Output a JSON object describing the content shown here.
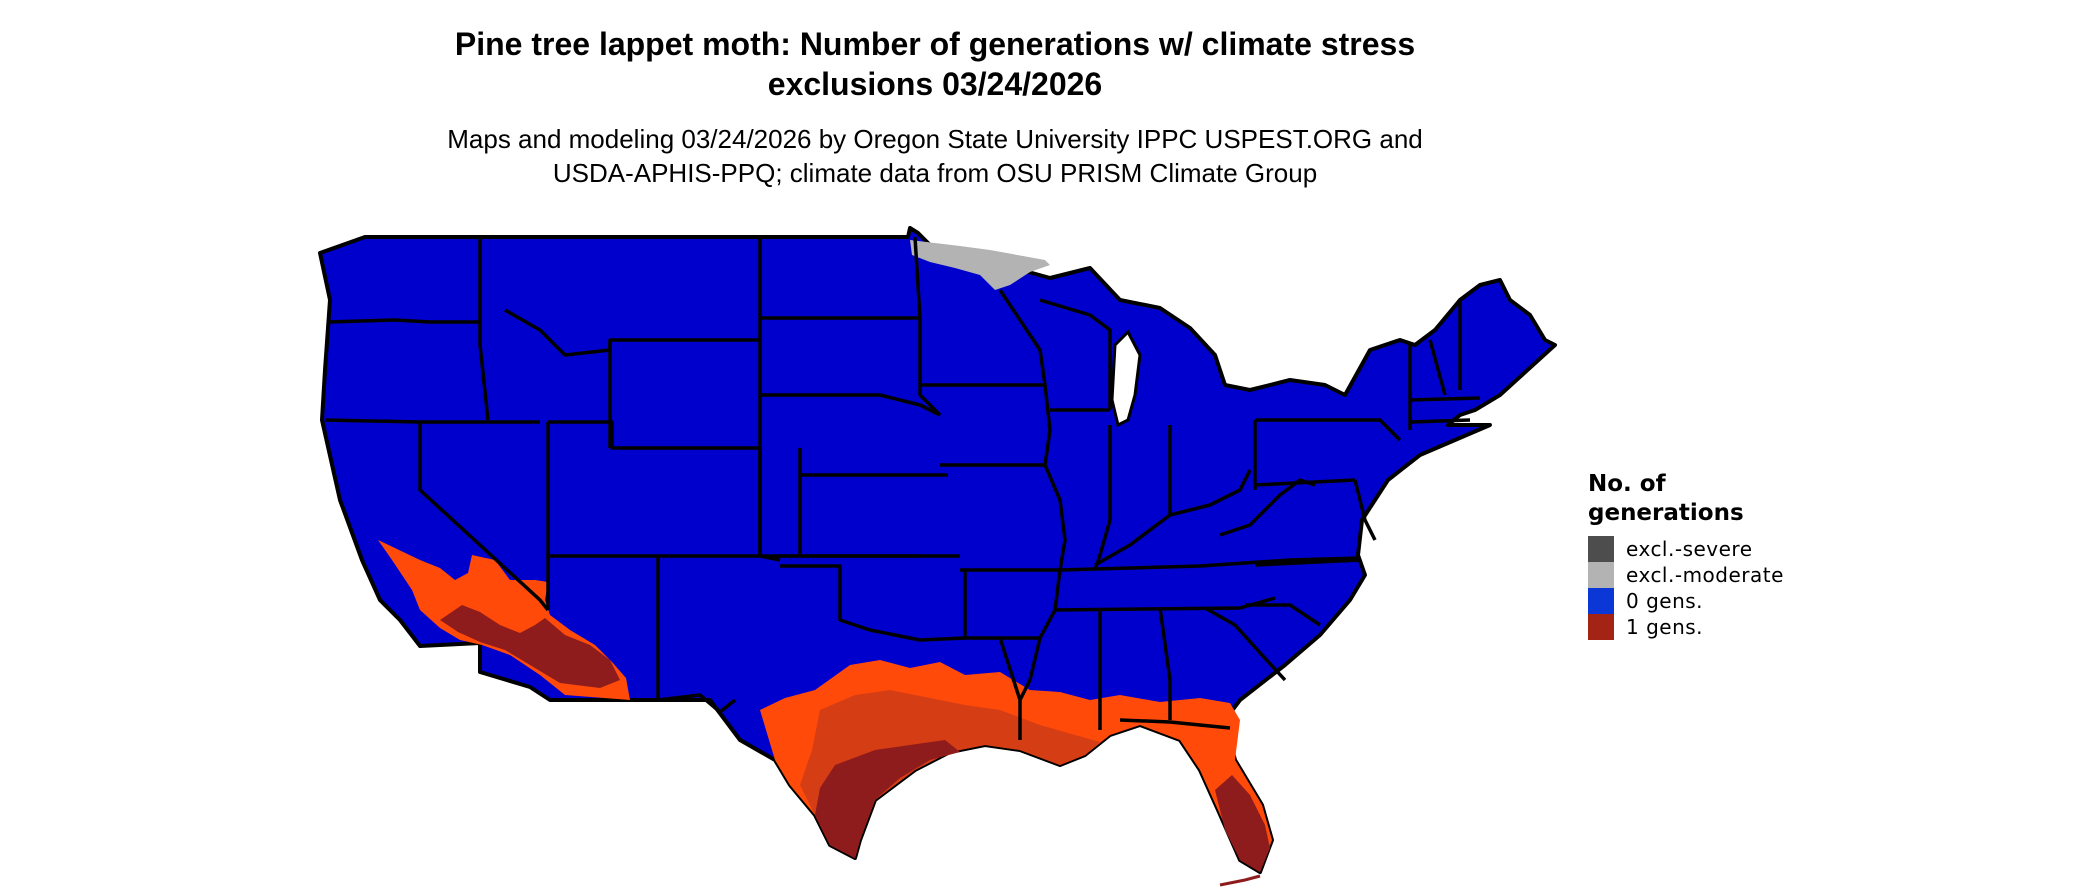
{
  "title_line1": "Pine tree lappet moth: Number of generations w/ climate stress",
  "title_line2": "exclusions 03/24/2026",
  "subtitle_line1": "Maps and modeling 03/24/2026 by Oregon State University IPPC USPEST.ORG and",
  "subtitle_line2": "USDA-APHIS-PPQ; climate data from OSU PRISM Climate Group",
  "legend": {
    "title_line1": "No. of",
    "title_line2": "generations",
    "items": [
      {
        "label": "excl.-severe",
        "color": "#4d4d4d"
      },
      {
        "label": "excl.-moderate",
        "color": "#b3b3b3"
      },
      {
        "label": "0 gens.",
        "color": "#0a37d6"
      },
      {
        "label": "1 gens.",
        "color": "#a32414"
      }
    ]
  },
  "colors": {
    "zero_generations": "#0000cc",
    "one_generation_light": "#ff4a0a",
    "one_generation_mid": "#d53d14",
    "one_generation_dark": "#8f1c1c",
    "moderate_exclusion": "#b3b3b3",
    "state_border": "#000000"
  }
}
